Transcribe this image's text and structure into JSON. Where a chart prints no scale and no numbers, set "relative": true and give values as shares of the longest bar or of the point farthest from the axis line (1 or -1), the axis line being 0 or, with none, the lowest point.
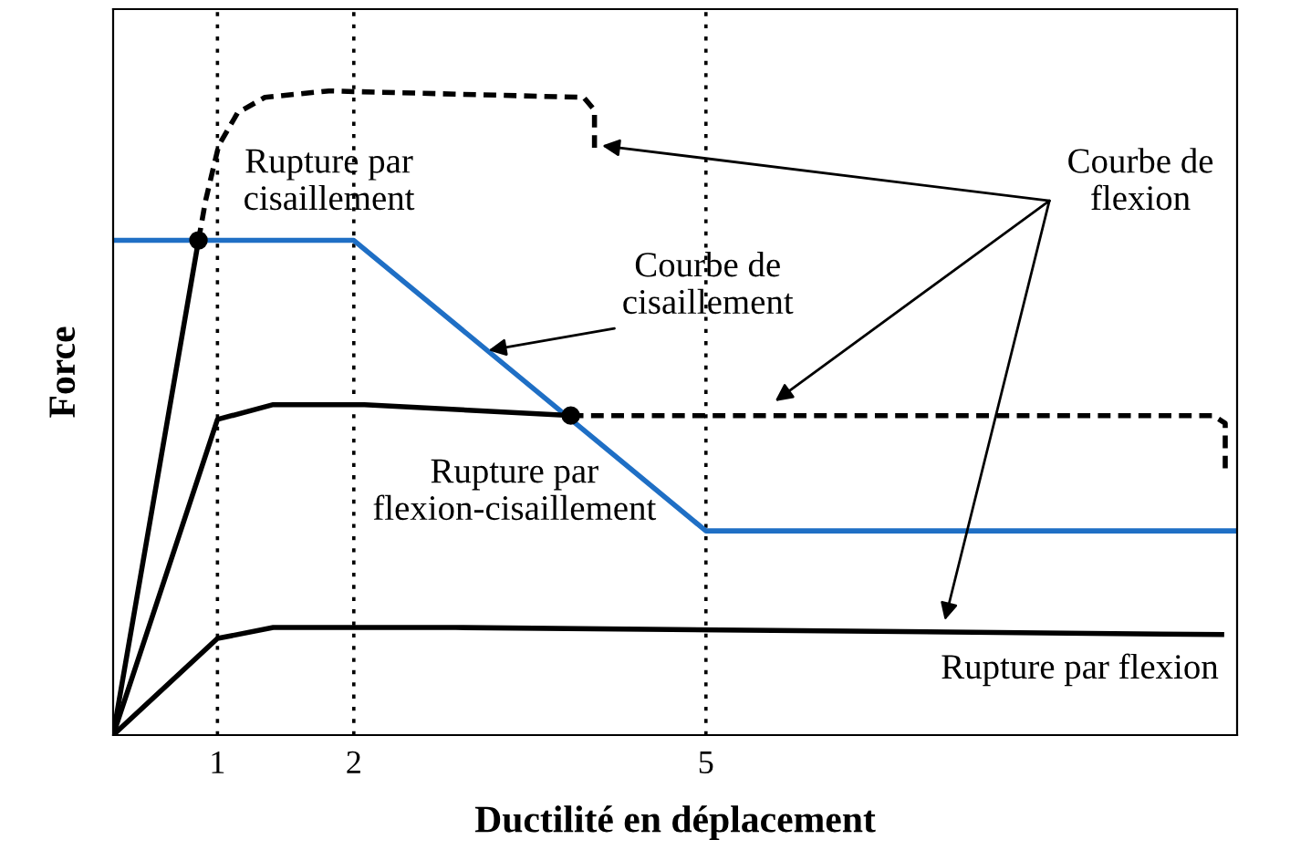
{
  "chart_data": {
    "type": "line",
    "relative": true,
    "xlabel": "Ductilité en déplacement",
    "ylabel": "Force",
    "xlim": [
      0,
      9.48
    ],
    "xticks": [
      {
        "value": 0.88,
        "label": "1"
      },
      {
        "value": 2.03,
        "label": "2"
      },
      {
        "value": 5.0,
        "label": "5"
      }
    ],
    "grid": false,
    "legend": false,
    "ref_lines": [
      {
        "axis": "x",
        "value": 0.88,
        "color": "#000000",
        "line_style": "dotted"
      },
      {
        "axis": "x",
        "value": 2.03,
        "color": "#000000",
        "line_style": "dotted"
      },
      {
        "axis": "x",
        "value": 5.0,
        "color": "#000000",
        "line_style": "dotted"
      }
    ],
    "series": [
      {
        "color": "#1f6fc5",
        "x": [
          0,
          2.03,
          5.0,
          9.48
        ],
        "values": [
          0.768,
          0.768,
          0.317,
          0.317
        ],
        "line_style": "solid"
      },
      {
        "color": "#000000",
        "x": [
          0,
          0.72
        ],
        "values": [
          0,
          0.768
        ],
        "line_style": "solid"
      },
      {
        "color": "#000000",
        "x": [
          0.72,
          0.78,
          0.89,
          1.05,
          1.28,
          1.82,
          3.97,
          4.06,
          4.06
        ],
        "values": [
          0.768,
          0.83,
          0.915,
          0.966,
          0.99,
          1.0,
          0.99,
          0.97,
          0.91
        ],
        "line_style": "dashed"
      },
      {
        "color": "#000000",
        "x": [
          0,
          0.88,
          1.35,
          2.12,
          3.86
        ],
        "values": [
          0,
          0.49,
          0.513,
          0.513,
          0.496
        ],
        "line_style": "solid"
      },
      {
        "color": "#000000",
        "x": [
          3.86,
          9.28,
          9.38,
          9.38
        ],
        "values": [
          0.496,
          0.496,
          0.484,
          0.414
        ],
        "line_style": "dashed"
      },
      {
        "color": "#000000",
        "x": [
          0,
          0.88,
          1.35,
          2.89,
          9.35
        ],
        "values": [
          0,
          0.15,
          0.167,
          0.167,
          0.156
        ],
        "line_style": "solid"
      },
      {
        "type": "scatter",
        "color": "#000000",
        "x": [
          0.72,
          3.86
        ],
        "values": [
          0.768,
          0.496
        ],
        "marker": "circle"
      }
    ],
    "annotations": [
      "Rupture par\ncisaillement",
      "Courbe de\ncisaillement",
      "Rupture par\nflexion-cisaillement",
      "Courbe de\nflexion",
      "Rupture par flexion"
    ]
  }
}
